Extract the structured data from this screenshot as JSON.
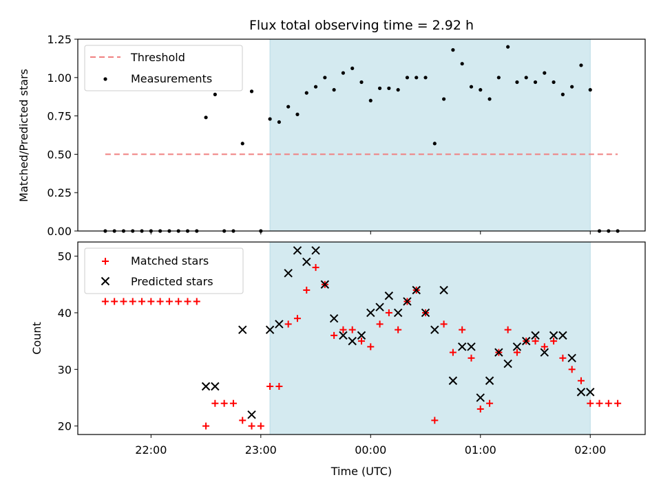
{
  "chart_data": {
    "type": "scatter",
    "title": "Flux total observing time = 2.92 h",
    "xlabel": "Time (UTC)",
    "x_tick_labels": [
      "22:00",
      "23:00",
      "00:00",
      "01:00",
      "02:00"
    ],
    "x_ticks": [
      "22:00",
      "23:00",
      "00:00",
      "01:00",
      "02:00"
    ],
    "xlim": [
      "21:20",
      "02:30"
    ],
    "shaded_interval": [
      "23:05",
      "02:00"
    ],
    "shade_color": "#d4eaf0",
    "top_panel": {
      "ylabel": "Matched/Predicted stars",
      "ylim": [
        0,
        1.25
      ],
      "y_ticks": [
        "0.00",
        "0.25",
        "0.50",
        "0.75",
        "1.00",
        "1.25"
      ],
      "legend_position": "top-left",
      "threshold": {
        "name": "Threshold",
        "value": 0.5,
        "x_range": [
          "21:35",
          "02:15"
        ],
        "color": "#f08080",
        "style": "dashed"
      },
      "series": [
        {
          "name": "Measurements",
          "color": "#000000",
          "marker": "dot",
          "points": [
            [
              "21:35",
              0
            ],
            [
              "21:40",
              0
            ],
            [
              "21:45",
              0
            ],
            [
              "21:50",
              0
            ],
            [
              "21:55",
              0
            ],
            [
              "22:00",
              0
            ],
            [
              "22:05",
              0
            ],
            [
              "22:10",
              0
            ],
            [
              "22:15",
              0
            ],
            [
              "22:20",
              0
            ],
            [
              "22:25",
              0
            ],
            [
              "22:30",
              0.74
            ],
            [
              "22:35",
              0.89
            ],
            [
              "22:40",
              0
            ],
            [
              "22:45",
              0
            ],
            [
              "22:50",
              0.57
            ],
            [
              "22:55",
              0.91
            ],
            [
              "23:00",
              0
            ],
            [
              "23:05",
              0.73
            ],
            [
              "23:10",
              0.71
            ],
            [
              "23:15",
              0.81
            ],
            [
              "23:20",
              0.76
            ],
            [
              "23:25",
              0.9
            ],
            [
              "23:30",
              0.94
            ],
            [
              "23:35",
              1.0
            ],
            [
              "23:40",
              0.92
            ],
            [
              "23:45",
              1.03
            ],
            [
              "23:50",
              1.06
            ],
            [
              "23:55",
              0.97
            ],
            [
              "00:00",
              0.85
            ],
            [
              "00:05",
              0.93
            ],
            [
              "00:10",
              0.93
            ],
            [
              "00:15",
              0.92
            ],
            [
              "00:20",
              1.0
            ],
            [
              "00:25",
              1.0
            ],
            [
              "00:30",
              1.0
            ],
            [
              "00:35",
              0.57
            ],
            [
              "00:40",
              0.86
            ],
            [
              "00:45",
              1.18
            ],
            [
              "00:50",
              1.09
            ],
            [
              "00:55",
              0.94
            ],
            [
              "01:00",
              0.92
            ],
            [
              "01:05",
              0.86
            ],
            [
              "01:10",
              1.0
            ],
            [
              "01:15",
              1.2
            ],
            [
              "01:20",
              0.97
            ],
            [
              "01:25",
              1.0
            ],
            [
              "01:30",
              0.97
            ],
            [
              "01:35",
              1.03
            ],
            [
              "01:40",
              0.97
            ],
            [
              "01:45",
              0.89
            ],
            [
              "01:50",
              0.94
            ],
            [
              "01:55",
              1.08
            ],
            [
              "02:00",
              0.92
            ],
            [
              "02:05",
              0
            ],
            [
              "02:10",
              0
            ],
            [
              "02:15",
              0
            ]
          ]
        }
      ]
    },
    "bottom_panel": {
      "ylabel": "Count",
      "ylim": [
        18.5,
        52.5
      ],
      "y_ticks": [
        "20",
        "30",
        "40",
        "50"
      ],
      "legend_position": "top-left",
      "series": [
        {
          "name": "Matched stars",
          "color": "#ff0000",
          "marker": "plus",
          "points": [
            [
              "21:35",
              42
            ],
            [
              "21:40",
              42
            ],
            [
              "21:45",
              42
            ],
            [
              "21:50",
              42
            ],
            [
              "21:55",
              42
            ],
            [
              "22:00",
              42
            ],
            [
              "22:05",
              42
            ],
            [
              "22:10",
              42
            ],
            [
              "22:15",
              42
            ],
            [
              "22:20",
              42
            ],
            [
              "22:25",
              42
            ],
            [
              "22:30",
              20
            ],
            [
              "22:35",
              24
            ],
            [
              "22:40",
              24
            ],
            [
              "22:45",
              24
            ],
            [
              "22:50",
              21
            ],
            [
              "22:55",
              20
            ],
            [
              "23:00",
              20
            ],
            [
              "23:05",
              27
            ],
            [
              "23:10",
              27
            ],
            [
              "23:15",
              38
            ],
            [
              "23:20",
              39
            ],
            [
              "23:25",
              44
            ],
            [
              "23:30",
              48
            ],
            [
              "23:35",
              45
            ],
            [
              "23:40",
              36
            ],
            [
              "23:45",
              37
            ],
            [
              "23:50",
              37
            ],
            [
              "23:55",
              35
            ],
            [
              "00:00",
              34
            ],
            [
              "00:05",
              38
            ],
            [
              "00:10",
              40
            ],
            [
              "00:15",
              37
            ],
            [
              "00:20",
              42
            ],
            [
              "00:25",
              44
            ],
            [
              "00:30",
              40
            ],
            [
              "00:35",
              21
            ],
            [
              "00:40",
              38
            ],
            [
              "00:45",
              33
            ],
            [
              "00:50",
              37
            ],
            [
              "00:55",
              32
            ],
            [
              "01:00",
              23
            ],
            [
              "01:05",
              24
            ],
            [
              "01:10",
              33
            ],
            [
              "01:15",
              37
            ],
            [
              "01:20",
              33
            ],
            [
              "01:25",
              35
            ],
            [
              "01:30",
              35
            ],
            [
              "01:35",
              34
            ],
            [
              "01:40",
              35
            ],
            [
              "01:45",
              32
            ],
            [
              "01:50",
              30
            ],
            [
              "01:55",
              28
            ],
            [
              "02:00",
              24
            ],
            [
              "02:05",
              24
            ],
            [
              "02:10",
              24
            ],
            [
              "02:15",
              24
            ]
          ]
        },
        {
          "name": "Predicted stars",
          "color": "#000000",
          "marker": "x",
          "points": [
            [
              "22:30",
              27
            ],
            [
              "22:35",
              27
            ],
            [
              "22:50",
              37
            ],
            [
              "22:55",
              22
            ],
            [
              "23:05",
              37
            ],
            [
              "23:10",
              38
            ],
            [
              "23:15",
              47
            ],
            [
              "23:20",
              51
            ],
            [
              "23:25",
              49
            ],
            [
              "23:30",
              51
            ],
            [
              "23:35",
              45
            ],
            [
              "23:40",
              39
            ],
            [
              "23:45",
              36
            ],
            [
              "23:50",
              35
            ],
            [
              "23:55",
              36
            ],
            [
              "00:00",
              40
            ],
            [
              "00:05",
              41
            ],
            [
              "00:10",
              43
            ],
            [
              "00:15",
              40
            ],
            [
              "00:20",
              42
            ],
            [
              "00:25",
              44
            ],
            [
              "00:30",
              40
            ],
            [
              "00:35",
              37
            ],
            [
              "00:40",
              44
            ],
            [
              "00:45",
              28
            ],
            [
              "00:50",
              34
            ],
            [
              "00:55",
              34
            ],
            [
              "01:00",
              25
            ],
            [
              "01:05",
              28
            ],
            [
              "01:10",
              33
            ],
            [
              "01:15",
              31
            ],
            [
              "01:20",
              34
            ],
            [
              "01:25",
              35
            ],
            [
              "01:30",
              36
            ],
            [
              "01:35",
              33
            ],
            [
              "01:40",
              36
            ],
            [
              "01:45",
              36
            ],
            [
              "01:50",
              32
            ],
            [
              "01:55",
              26
            ],
            [
              "02:00",
              26
            ]
          ]
        }
      ]
    }
  }
}
